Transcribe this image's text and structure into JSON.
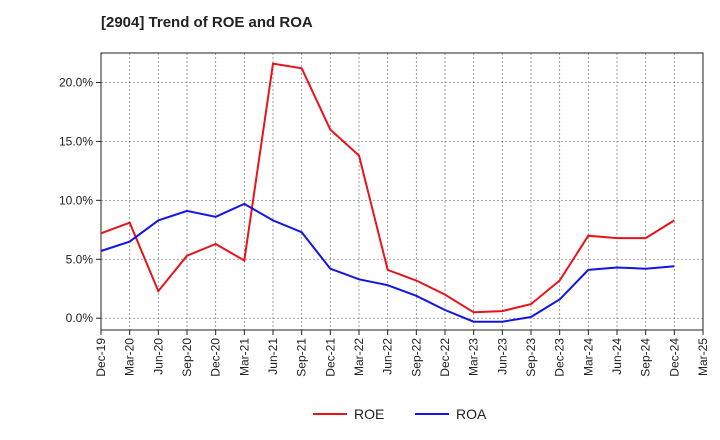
{
  "chart_data": {
    "type": "line",
    "title": "[2904]  Trend of ROE and ROA",
    "xlabel": "",
    "ylabel": "",
    "ylim": [
      -1.0,
      22.5
    ],
    "yticks": [
      0,
      5,
      10,
      15,
      20
    ],
    "ytick_labels": [
      "0.0%",
      "5.0%",
      "10.0%",
      "15.0%",
      "20.0%"
    ],
    "categories": [
      "Dec-19",
      "Mar-20",
      "Jun-20",
      "Sep-20",
      "Dec-20",
      "Mar-21",
      "Jun-21",
      "Sep-21",
      "Dec-21",
      "Mar-22",
      "Jun-22",
      "Sep-22",
      "Dec-22",
      "Mar-23",
      "Jun-23",
      "Sep-23",
      "Dec-23",
      "Mar-24",
      "Jun-24",
      "Sep-24",
      "Dec-24",
      "Mar-25"
    ],
    "grid": true,
    "legend_position": "bottom",
    "series": [
      {
        "name": "ROE",
        "color": "#e8131b",
        "values": [
          7.2,
          8.1,
          2.3,
          5.3,
          6.3,
          4.9,
          21.6,
          21.2,
          16.0,
          13.8,
          4.1,
          3.2,
          2.0,
          0.5,
          0.6,
          1.2,
          3.2,
          7.0,
          6.8,
          6.8,
          8.3,
          null
        ]
      },
      {
        "name": "ROA",
        "color": "#1414e6",
        "values": [
          5.7,
          6.5,
          8.3,
          9.1,
          8.6,
          9.7,
          8.3,
          7.3,
          4.2,
          3.3,
          2.8,
          1.9,
          0.7,
          -0.3,
          -0.3,
          0.1,
          1.6,
          4.1,
          4.3,
          4.2,
          4.4,
          null
        ]
      }
    ]
  }
}
